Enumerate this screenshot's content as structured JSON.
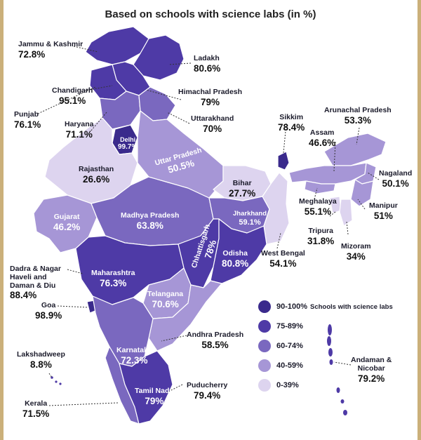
{
  "title": "Based on schools with science labs (in %)",
  "colors": {
    "range_90_100": "#3a2a8c",
    "range_75_89": "#4e3aa6",
    "range_60_74": "#7a68bf",
    "range_40_59": "#a696d6",
    "range_0_39": "#ddd4ef"
  },
  "legend": {
    "note": "Schools with science labs",
    "items": [
      {
        "label": "90-100%",
        "color": "#3a2a8c"
      },
      {
        "label": "75-89%",
        "color": "#4e3aa6"
      },
      {
        "label": "60-74%",
        "color": "#7a68bf"
      },
      {
        "label": "40-59%",
        "color": "#a696d6"
      },
      {
        "label": "0-39%",
        "color": "#ddd4ef"
      }
    ]
  },
  "states": {
    "jammu_kashmir": {
      "name": "Jammu & Kashmir",
      "value": "72.8%"
    },
    "ladakh": {
      "name": "Ladakh",
      "value": "80.6%"
    },
    "chandigarh": {
      "name": "Chandigarh",
      "value": "95.1%"
    },
    "himachal": {
      "name": "Himachal Pradesh",
      "value": "79%"
    },
    "punjab": {
      "name": "Punjab",
      "value": "76.1%"
    },
    "haryana": {
      "name": "Haryana",
      "value": "71.1%"
    },
    "uttarakhand": {
      "name": "Uttarakhand",
      "value": "70%"
    },
    "delhi": {
      "name": "Delhi",
      "value": "99.7%"
    },
    "uttar_pradesh": {
      "name": "Uttar Pradesh",
      "value": "50.5%"
    },
    "rajasthan": {
      "name": "Rajasthan",
      "value": "26.6%"
    },
    "bihar": {
      "name": "Bihar",
      "value": "27.7%"
    },
    "sikkim": {
      "name": "Sikkim",
      "value": "78.4%"
    },
    "arunachal": {
      "name": "Arunachal Pradesh",
      "value": "53.3%"
    },
    "assam": {
      "name": "Assam",
      "value": "46.6%"
    },
    "nagaland": {
      "name": "Nagaland",
      "value": "50.1%"
    },
    "meghalaya": {
      "name": "Meghalaya",
      "value": "55.1%"
    },
    "manipur": {
      "name": "Manipur",
      "value": "51%"
    },
    "tripura": {
      "name": "Tripura",
      "value": "31.8%"
    },
    "mizoram": {
      "name": "Mizoram",
      "value": "34%"
    },
    "gujarat": {
      "name": "Gujarat",
      "value": "46.2%"
    },
    "madhya_pradesh": {
      "name": "Madhya Pradesh",
      "value": "63.8%"
    },
    "jharkhand": {
      "name": "Jharkhand",
      "value": "59.1%"
    },
    "chhattisgarh": {
      "name": "Chhattisgarh",
      "value": "78%"
    },
    "odisha": {
      "name": "Odisha",
      "value": "80.8%"
    },
    "west_bengal": {
      "name": "West Bengal",
      "value": "54.1%"
    },
    "dadra": {
      "name": "Dadra & Nagar Haveli and Daman & Diu",
      "line1": "Dadra & Nagar",
      "line2": "Haveli and",
      "line3": "Daman & Diu",
      "value": "88.4%"
    },
    "maharashtra": {
      "name": "Maharashtra",
      "value": "76.3%"
    },
    "telangana": {
      "name": "Telangana",
      "value": "70.6%"
    },
    "goa": {
      "name": "Goa",
      "value": "98.9%"
    },
    "andhra": {
      "name": "Andhra Pradesh",
      "value": "58.5%"
    },
    "karnataka": {
      "name": "Karnataka",
      "value": "72.3%"
    },
    "lakshadweep": {
      "name": "Lakshadweep",
      "value": "8.8%"
    },
    "andaman": {
      "name": "Andaman & Nicobar",
      "line1": "Andaman &",
      "line2": "Nicobar",
      "value": "79.2%"
    },
    "puducherry": {
      "name": "Puducherry",
      "value": "79.4%"
    },
    "tamil_nadu": {
      "name": "Tamil Nadu",
      "value": "79%"
    },
    "kerala": {
      "name": "Kerala",
      "value": "71.5%"
    }
  }
}
